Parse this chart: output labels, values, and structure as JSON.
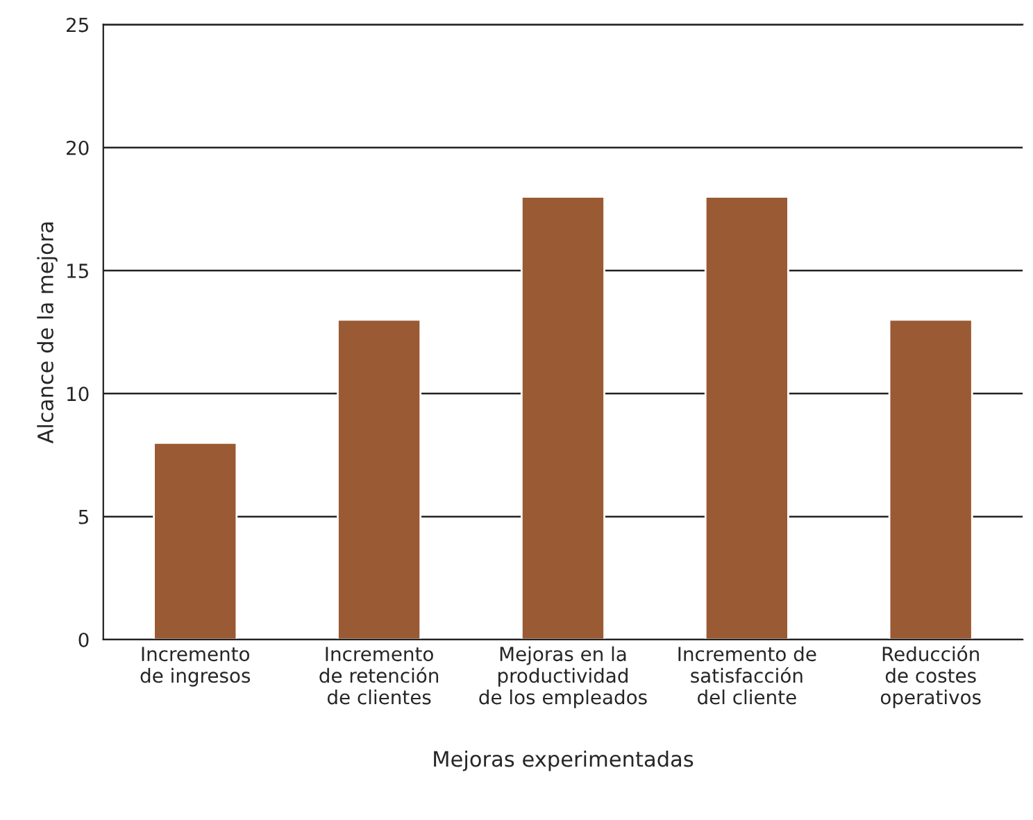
{
  "chart_data": {
    "type": "bar",
    "xlabel": "Mejoras experimentadas",
    "ylabel": "Alcance de la mejora",
    "categories": [
      "Incremento\nde ingresos",
      "Incremento\nde retención\nde clientes",
      "Mejoras en la\nproductividad\nde los empleados",
      "Incremento de\nsatisfacción\ndel cliente",
      "Reducción\nde costes\noperativos"
    ],
    "values": [
      8,
      13,
      18,
      18,
      13
    ],
    "color": "#9a5a33",
    "ylim": [
      0,
      25
    ],
    "yticks": [
      0,
      5,
      10,
      15,
      20,
      25
    ],
    "grid": "y"
  }
}
